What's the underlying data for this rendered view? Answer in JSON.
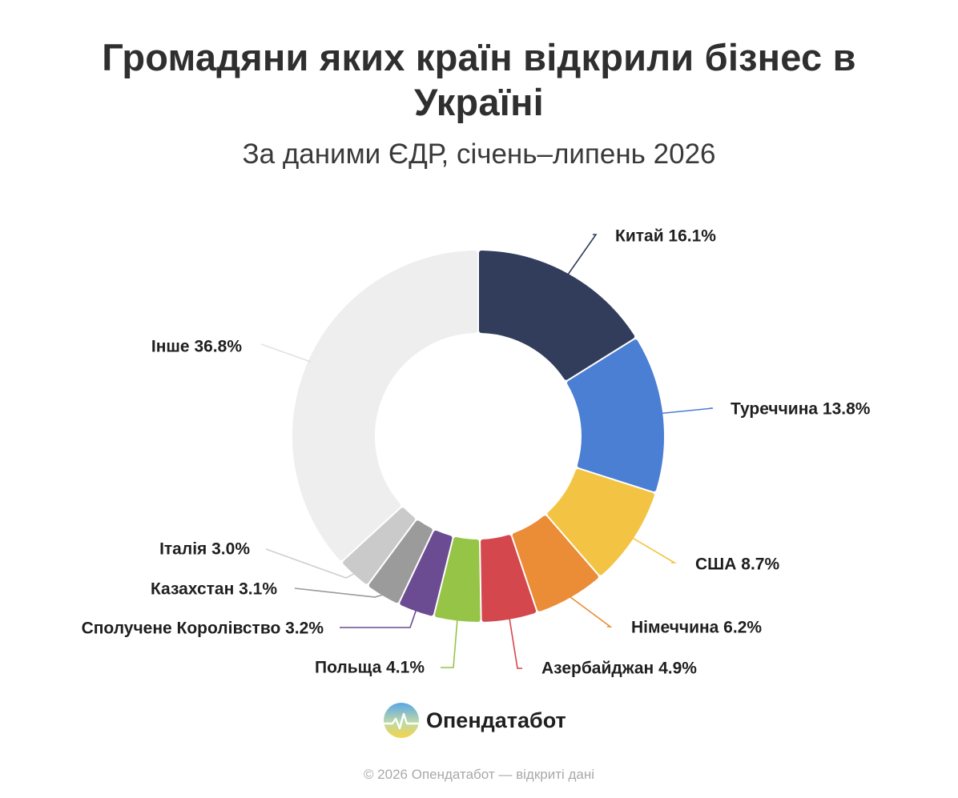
{
  "header": {
    "title": "Громадяни яких країн відкрили бізнес в Україні",
    "subtitle": "За даними ЄДР, січень–липень 2026"
  },
  "chart_data": {
    "type": "pie",
    "variant": "donut",
    "unit": "%",
    "categories": [
      "Китай",
      "Туреччина",
      "США",
      "Німеччина",
      "Азербайджан",
      "Польща",
      "Сполучене Королівство",
      "Казахстан",
      "Італія",
      "Інше"
    ],
    "values": [
      16.1,
      13.8,
      8.7,
      6.2,
      4.9,
      4.1,
      3.2,
      3.1,
      3.0,
      36.8
    ],
    "labels": [
      "Китай 16.1%",
      "Туреччина 13.8%",
      "США 8.7%",
      "Німеччина 6.2%",
      "Азербайджан 4.9%",
      "Польща 4.1%",
      "Сполучене Королівство 3.2%",
      "Казахстан 3.1%",
      "Італія 3.0%",
      "Інше 36.8%"
    ],
    "colors": [
      "#323d5c",
      "#4a7fd3",
      "#f3c443",
      "#eb8c37",
      "#d4474c",
      "#96c447",
      "#6b4c92",
      "#9b9b9b",
      "#cacaca",
      "#eeeeee"
    ],
    "legend": "none",
    "grid": false
  },
  "brand": {
    "name": "Опендатабот",
    "logo_icon": "opendatabot-logo-icon"
  },
  "footer": {
    "copyright": "© 2026 Опендатабот — відкриті дані"
  }
}
